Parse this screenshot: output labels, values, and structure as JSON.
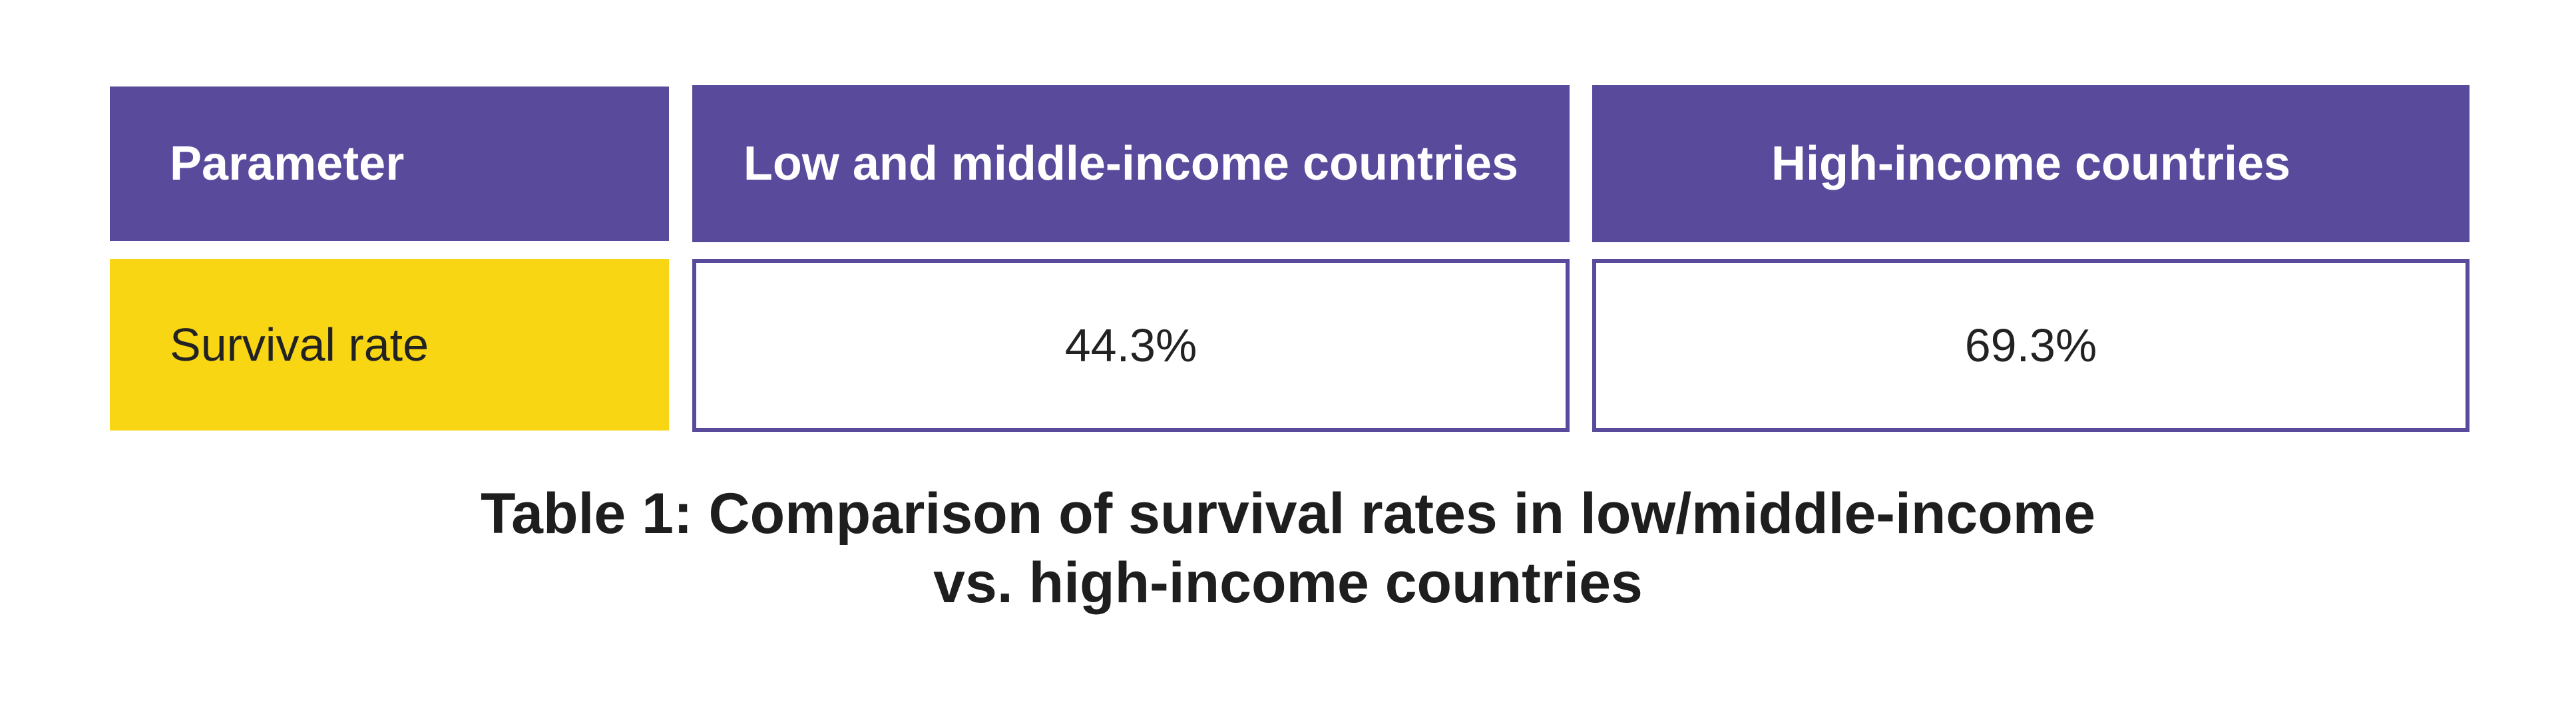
{
  "table": {
    "headers": [
      "Parameter",
      "Low and middle-income countries",
      "High-income countries"
    ],
    "rows": [
      {
        "label": "Survival rate",
        "values": [
          "44.3%",
          "69.3%"
        ]
      }
    ]
  },
  "caption": {
    "line1": "Table 1: Comparison of survival rates in low/middle-income",
    "line2": "vs. high-income countries"
  },
  "colors": {
    "header_bg": "#594a9c",
    "label_bg": "#f8d614",
    "border": "#594a9c"
  }
}
